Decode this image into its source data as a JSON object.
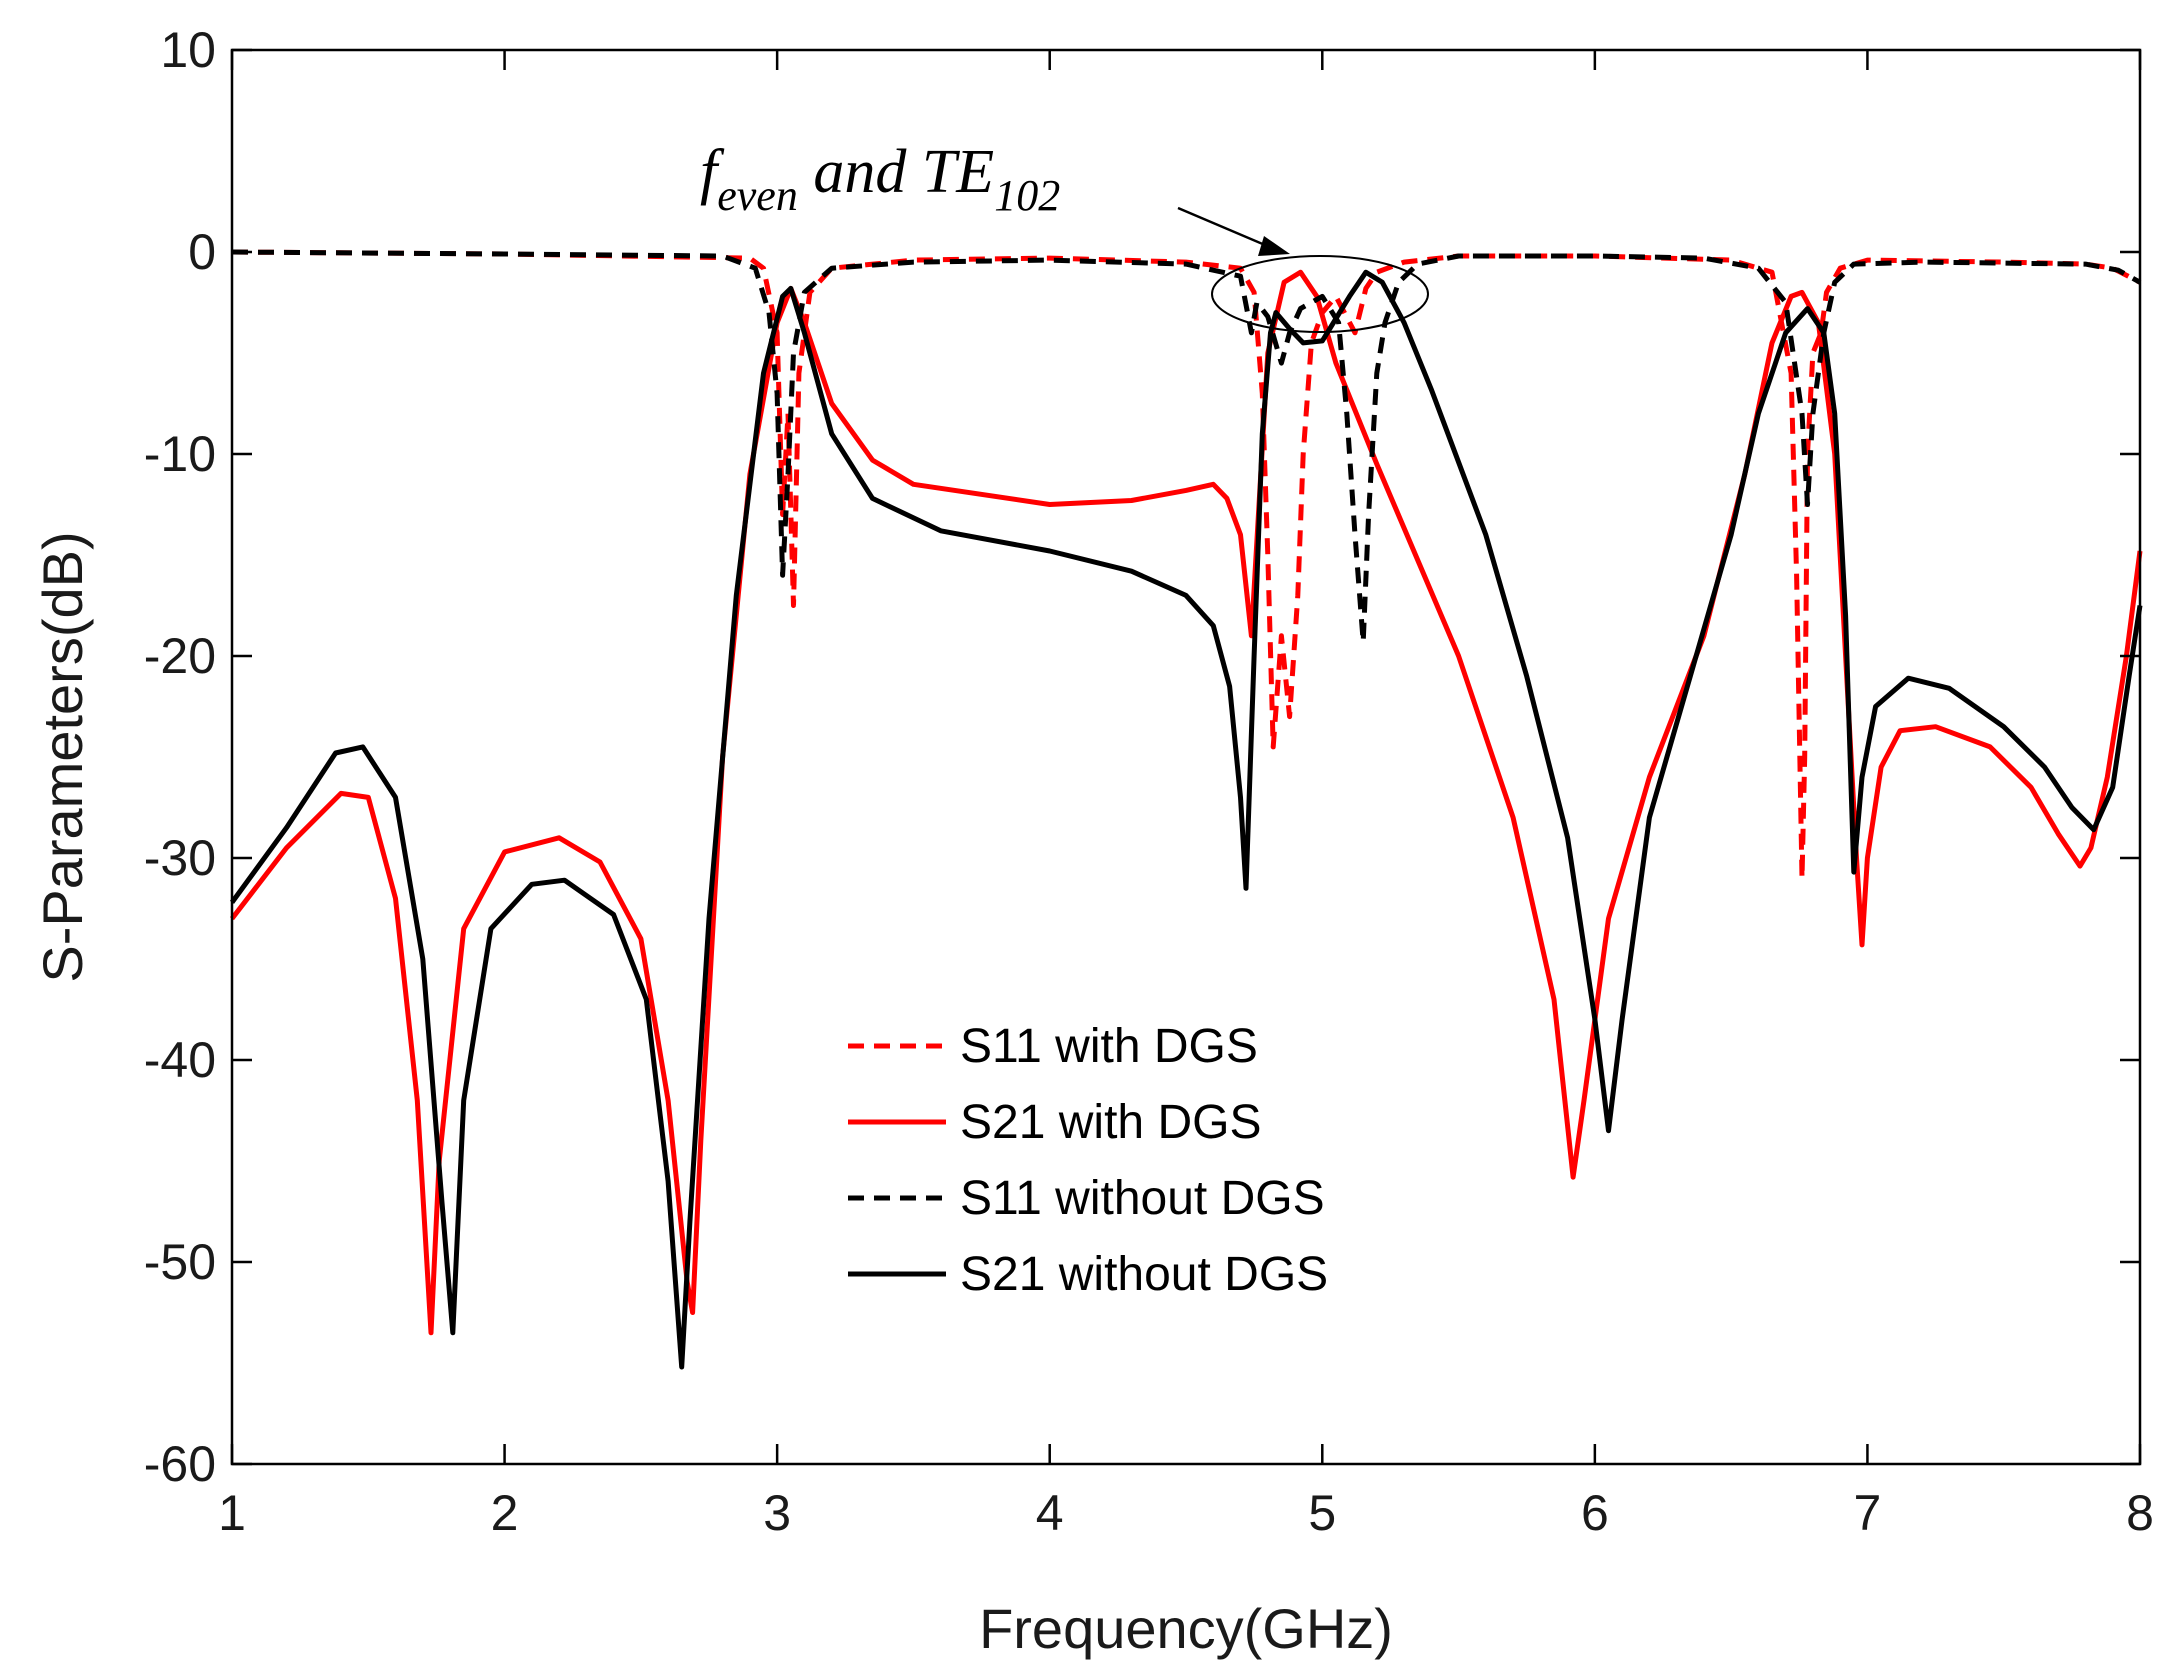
{
  "chart_data": {
    "type": "line",
    "xlabel": "Frequency(GHz)",
    "ylabel": "S-Parameters(dB)",
    "xlim": [
      1,
      8
    ],
    "ylim": [
      -60,
      10
    ],
    "xticks": [
      1,
      2,
      3,
      4,
      5,
      6,
      7,
      8
    ],
    "yticks": [
      10,
      0,
      -10,
      -20,
      -30,
      -40,
      -50,
      -60
    ],
    "grid": false,
    "legend_position": "bottom-center",
    "annotation": {
      "f": "f",
      "f_sub": "even",
      "mid": " and TE",
      "te_sub": "102",
      "target_x": 5.0,
      "target_y": -2
    },
    "series": [
      {
        "name": "S11 with DGS",
        "color": "#ff0000",
        "style": "dashed",
        "points": [
          [
            1.0,
            0.0
          ],
          [
            2.0,
            -0.1
          ],
          [
            2.9,
            -0.3
          ],
          [
            2.95,
            -0.8
          ],
          [
            3.0,
            -4.0
          ],
          [
            3.02,
            -13
          ],
          [
            3.04,
            -8
          ],
          [
            3.06,
            -17.5
          ],
          [
            3.08,
            -6
          ],
          [
            3.12,
            -2
          ],
          [
            3.2,
            -0.8
          ],
          [
            3.5,
            -0.4
          ],
          [
            4.0,
            -0.3
          ],
          [
            4.5,
            -0.5
          ],
          [
            4.7,
            -0.8
          ],
          [
            4.75,
            -2
          ],
          [
            4.78,
            -7
          ],
          [
            4.8,
            -15
          ],
          [
            4.82,
            -24.5
          ],
          [
            4.85,
            -19
          ],
          [
            4.88,
            -23
          ],
          [
            4.91,
            -17
          ],
          [
            4.93,
            -10
          ],
          [
            4.96,
            -4.5
          ],
          [
            5.0,
            -3
          ],
          [
            5.05,
            -2.2
          ],
          [
            5.12,
            -4
          ],
          [
            5.16,
            -1.8
          ],
          [
            5.2,
            -1.0
          ],
          [
            5.3,
            -0.5
          ],
          [
            5.5,
            -0.2
          ],
          [
            6.0,
            -0.2
          ],
          [
            6.5,
            -0.4
          ],
          [
            6.65,
            -1.0
          ],
          [
            6.72,
            -6
          ],
          [
            6.74,
            -16
          ],
          [
            6.76,
            -31
          ],
          [
            6.77,
            -25
          ],
          [
            6.78,
            -10
          ],
          [
            6.8,
            -5
          ],
          [
            6.83,
            -4
          ],
          [
            6.85,
            -2
          ],
          [
            6.9,
            -0.8
          ],
          [
            7.0,
            -0.4
          ],
          [
            7.5,
            -0.5
          ],
          [
            7.8,
            -0.6
          ],
          [
            7.9,
            -0.8
          ],
          [
            8.0,
            -1.5
          ]
        ]
      },
      {
        "name": "S21 with DGS",
        "color": "#ff0000",
        "style": "solid",
        "points": [
          [
            1.0,
            -33
          ],
          [
            1.2,
            -29.5
          ],
          [
            1.4,
            -26.8
          ],
          [
            1.5,
            -27
          ],
          [
            1.6,
            -32
          ],
          [
            1.68,
            -42
          ],
          [
            1.73,
            -53.5
          ],
          [
            1.76,
            -45
          ],
          [
            1.85,
            -33.5
          ],
          [
            2.0,
            -29.7
          ],
          [
            2.2,
            -29
          ],
          [
            2.35,
            -30.2
          ],
          [
            2.5,
            -34
          ],
          [
            2.6,
            -42
          ],
          [
            2.67,
            -51
          ],
          [
            2.69,
            -52.5
          ],
          [
            2.72,
            -44
          ],
          [
            2.8,
            -25
          ],
          [
            2.9,
            -11
          ],
          [
            3.0,
            -3.5
          ],
          [
            3.05,
            -1.8
          ],
          [
            3.1,
            -3.5
          ],
          [
            3.2,
            -7.5
          ],
          [
            3.35,
            -10.3
          ],
          [
            3.5,
            -11.5
          ],
          [
            4.0,
            -12.5
          ],
          [
            4.3,
            -12.3
          ],
          [
            4.5,
            -11.8
          ],
          [
            4.6,
            -11.5
          ],
          [
            4.65,
            -12.2
          ],
          [
            4.7,
            -14
          ],
          [
            4.74,
            -19
          ],
          [
            4.77,
            -12
          ],
          [
            4.8,
            -5
          ],
          [
            4.86,
            -1.5
          ],
          [
            4.92,
            -1.0
          ],
          [
            4.98,
            -2.2
          ],
          [
            5.05,
            -5.5
          ],
          [
            5.2,
            -10.5
          ],
          [
            5.5,
            -20
          ],
          [
            5.7,
            -28
          ],
          [
            5.85,
            -37
          ],
          [
            5.92,
            -45.8
          ],
          [
            5.96,
            -42
          ],
          [
            6.05,
            -33
          ],
          [
            6.2,
            -26
          ],
          [
            6.4,
            -19
          ],
          [
            6.55,
            -11
          ],
          [
            6.65,
            -4.5
          ],
          [
            6.72,
            -2.2
          ],
          [
            6.76,
            -2.0
          ],
          [
            6.82,
            -3.5
          ],
          [
            6.88,
            -10
          ],
          [
            6.92,
            -20
          ],
          [
            6.96,
            -30
          ],
          [
            6.98,
            -34.3
          ],
          [
            7.0,
            -30
          ],
          [
            7.05,
            -25.5
          ],
          [
            7.12,
            -23.7
          ],
          [
            7.25,
            -23.5
          ],
          [
            7.45,
            -24.5
          ],
          [
            7.6,
            -26.5
          ],
          [
            7.7,
            -28.8
          ],
          [
            7.78,
            -30.4
          ],
          [
            7.82,
            -29.5
          ],
          [
            7.88,
            -26
          ],
          [
            7.95,
            -20
          ],
          [
            8.0,
            -14.8
          ]
        ]
      },
      {
        "name": "S11 without DGS",
        "color": "#000000",
        "style": "dashed",
        "points": [
          [
            1.0,
            0.0
          ],
          [
            2.0,
            -0.1
          ],
          [
            2.8,
            -0.2
          ],
          [
            2.92,
            -0.8
          ],
          [
            2.97,
            -3
          ],
          [
            3.0,
            -7
          ],
          [
            3.02,
            -16
          ],
          [
            3.04,
            -11
          ],
          [
            3.06,
            -5
          ],
          [
            3.1,
            -2
          ],
          [
            3.2,
            -0.8
          ],
          [
            3.5,
            -0.5
          ],
          [
            4.0,
            -0.4
          ],
          [
            4.5,
            -0.6
          ],
          [
            4.7,
            -1.2
          ],
          [
            4.74,
            -4
          ],
          [
            4.76,
            -2.5
          ],
          [
            4.8,
            -3.2
          ],
          [
            4.85,
            -5.5
          ],
          [
            4.88,
            -4
          ],
          [
            4.92,
            -2.8
          ],
          [
            5.0,
            -2.2
          ],
          [
            5.06,
            -3.5
          ],
          [
            5.09,
            -8
          ],
          [
            5.12,
            -14
          ],
          [
            5.15,
            -19.3
          ],
          [
            5.17,
            -13
          ],
          [
            5.2,
            -6
          ],
          [
            5.23,
            -3.5
          ],
          [
            5.28,
            -1.5
          ],
          [
            5.35,
            -0.6
          ],
          [
            5.5,
            -0.2
          ],
          [
            6.0,
            -0.2
          ],
          [
            6.4,
            -0.3
          ],
          [
            6.6,
            -0.8
          ],
          [
            6.7,
            -2.5
          ],
          [
            6.76,
            -8
          ],
          [
            6.78,
            -12.5
          ],
          [
            6.8,
            -8
          ],
          [
            6.84,
            -4
          ],
          [
            6.88,
            -1.5
          ],
          [
            6.95,
            -0.6
          ],
          [
            7.2,
            -0.5
          ],
          [
            7.8,
            -0.6
          ],
          [
            7.92,
            -0.9
          ],
          [
            8.0,
            -1.5
          ]
        ]
      },
      {
        "name": "S21 without DGS",
        "color": "#000000",
        "style": "solid",
        "points": [
          [
            1.0,
            -32.2
          ],
          [
            1.2,
            -28.5
          ],
          [
            1.38,
            -24.8
          ],
          [
            1.48,
            -24.5
          ],
          [
            1.6,
            -27
          ],
          [
            1.7,
            -35
          ],
          [
            1.77,
            -47
          ],
          [
            1.81,
            -53.5
          ],
          [
            1.85,
            -42
          ],
          [
            1.95,
            -33.5
          ],
          [
            2.1,
            -31.3
          ],
          [
            2.22,
            -31.1
          ],
          [
            2.4,
            -32.8
          ],
          [
            2.52,
            -37
          ],
          [
            2.6,
            -46
          ],
          [
            2.65,
            -55.2
          ],
          [
            2.68,
            -48
          ],
          [
            2.75,
            -33
          ],
          [
            2.85,
            -17
          ],
          [
            2.95,
            -6
          ],
          [
            3.02,
            -2.2
          ],
          [
            3.05,
            -1.8
          ],
          [
            3.1,
            -4
          ],
          [
            3.2,
            -9
          ],
          [
            3.35,
            -12.2
          ],
          [
            3.6,
            -13.8
          ],
          [
            4.0,
            -14.8
          ],
          [
            4.3,
            -15.8
          ],
          [
            4.5,
            -17
          ],
          [
            4.6,
            -18.5
          ],
          [
            4.66,
            -21.5
          ],
          [
            4.7,
            -27
          ],
          [
            4.72,
            -31.5
          ],
          [
            4.75,
            -20
          ],
          [
            4.78,
            -9
          ],
          [
            4.81,
            -4
          ],
          [
            4.83,
            -3
          ],
          [
            4.88,
            -3.8
          ],
          [
            4.93,
            -4.5
          ],
          [
            5.0,
            -4.4
          ],
          [
            5.1,
            -2.2
          ],
          [
            5.16,
            -1.0
          ],
          [
            5.22,
            -1.5
          ],
          [
            5.3,
            -3.5
          ],
          [
            5.4,
            -6.8
          ],
          [
            5.6,
            -14
          ],
          [
            5.75,
            -21
          ],
          [
            5.9,
            -29
          ],
          [
            6.0,
            -38
          ],
          [
            6.05,
            -43.5
          ],
          [
            6.1,
            -38
          ],
          [
            6.2,
            -28
          ],
          [
            6.35,
            -21
          ],
          [
            6.5,
            -14
          ],
          [
            6.6,
            -8
          ],
          [
            6.7,
            -4
          ],
          [
            6.78,
            -2.8
          ],
          [
            6.84,
            -4
          ],
          [
            6.88,
            -8
          ],
          [
            6.92,
            -18
          ],
          [
            6.95,
            -30.7
          ],
          [
            6.98,
            -26
          ],
          [
            7.03,
            -22.5
          ],
          [
            7.15,
            -21.1
          ],
          [
            7.3,
            -21.6
          ],
          [
            7.5,
            -23.5
          ],
          [
            7.65,
            -25.5
          ],
          [
            7.75,
            -27.5
          ],
          [
            7.83,
            -28.6
          ],
          [
            7.9,
            -26.5
          ],
          [
            7.96,
            -21
          ],
          [
            8.0,
            -17.5
          ]
        ]
      }
    ]
  }
}
